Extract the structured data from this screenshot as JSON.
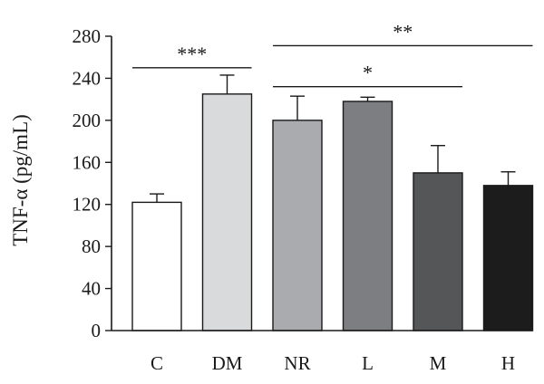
{
  "chart_data": {
    "type": "bar",
    "ylabel": "TNF-α (pg/mL)",
    "xlabel": "",
    "ylim": [
      0,
      280
    ],
    "yticks": [
      0,
      40,
      80,
      120,
      160,
      200,
      240,
      280
    ],
    "categories": [
      "C",
      "DM",
      "NR",
      "L",
      "M",
      "H"
    ],
    "values": [
      122,
      225,
      200,
      218,
      150,
      138
    ],
    "errors": [
      8,
      18,
      23,
      4,
      26,
      13
    ],
    "colors": [
      "#ffffff",
      "#d9dadb",
      "#a9abae",
      "#7c7e81",
      "#545658",
      "#1c1c1c"
    ],
    "significance": [
      {
        "label": "***",
        "from": 0,
        "to": 1,
        "y": 250
      },
      {
        "label": "**",
        "from": 2,
        "to": 5,
        "y": 271
      },
      {
        "label": "*",
        "from": 2,
        "to": 4,
        "y": 232
      }
    ]
  }
}
